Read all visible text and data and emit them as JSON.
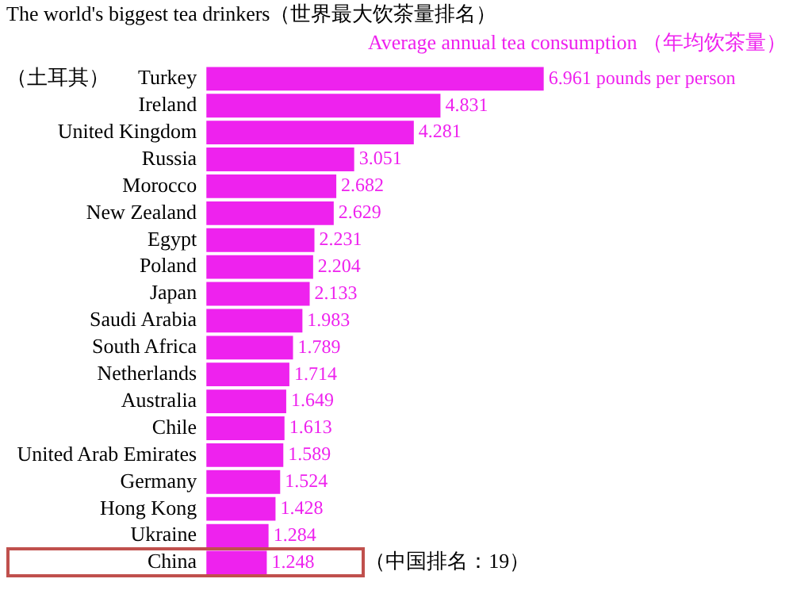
{
  "chart_data": {
    "type": "bar",
    "orientation": "horizontal",
    "title": "The world's biggest tea drinkers（世界最大饮茶量排名）",
    "subtitle": "Average annual tea consumption （年均饮茶量）",
    "categories": [
      "Turkey",
      "Ireland",
      "United Kingdom",
      "Russia",
      "Morocco",
      "New Zealand",
      "Egypt",
      "Poland",
      "Japan",
      "Saudi Arabia",
      "South Africa",
      "Netherlands",
      "Australia",
      "Chile",
      "United Arab Emirates",
      "Germany",
      "Hong Kong",
      "Ukraine",
      "China"
    ],
    "values": [
      6.961,
      4.831,
      4.281,
      3.051,
      2.682,
      2.629,
      2.231,
      2.204,
      2.133,
      1.983,
      1.789,
      1.714,
      1.649,
      1.613,
      1.589,
      1.524,
      1.428,
      1.284,
      1.248
    ],
    "value_labels": [
      "6.961 pounds per person",
      "4.831",
      "4.281",
      "3.051",
      "2.682",
      "2.629",
      "2.231",
      "2.204",
      "2.133",
      "1.983",
      "1.789",
      "1.714",
      "1.649",
      "1.613",
      "1.589",
      "1.524",
      "1.428",
      "1.284",
      "1.248"
    ],
    "color": "#ee22ee",
    "annotations": [
      "（土耳其）",
      "（中国排名：19）"
    ],
    "grid": false,
    "legend": false
  }
}
